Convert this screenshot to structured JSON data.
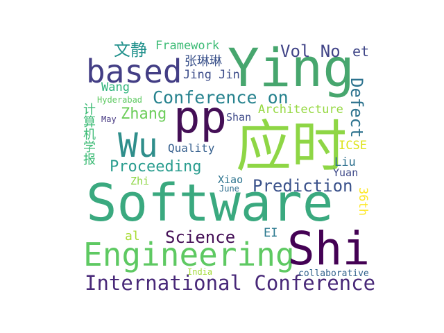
{
  "words": [
    {
      "key": "software",
      "text": "Software",
      "color": "#3aa97f"
    },
    {
      "key": "ying",
      "text": "Ying",
      "color": "#47a66e"
    },
    {
      "key": "based",
      "text": "based",
      "color": "#433e85"
    },
    {
      "key": "pp",
      "text": "pp",
      "color": "#440f56"
    },
    {
      "key": "wu",
      "text": "Wu",
      "color": "#2f8e8b"
    },
    {
      "key": "yingshi",
      "text": "应时",
      "color": "#8ed645"
    },
    {
      "key": "engineering",
      "text": "Engineering",
      "color": "#5ec962"
    },
    {
      "key": "shi",
      "text": "Shi",
      "color": "#440154"
    },
    {
      "key": "international_conference",
      "text": "International Conference",
      "color": "#482878"
    },
    {
      "key": "conference_on",
      "text": "Conference on",
      "color": "#26828e"
    },
    {
      "key": "prediction",
      "text": "Prediction",
      "color": "#3b528b"
    },
    {
      "key": "proceeding",
      "text": "Proceeding",
      "color": "#2a9d8f"
    },
    {
      "key": "science",
      "text": "Science",
      "color": "#440f56"
    },
    {
      "key": "vol_no",
      "text": "Vol No",
      "color": "#414487"
    },
    {
      "key": "et",
      "text": "et",
      "color": "#404788"
    },
    {
      "key": "zhang",
      "text": "Zhang",
      "color": "#6ccd5a"
    },
    {
      "key": "wenjing",
      "text": "文静",
      "color": "#21918c"
    },
    {
      "key": "framework",
      "text": "Framework",
      "color": "#3cbb75"
    },
    {
      "key": "zhanglinlin",
      "text": "张琳琳",
      "color": "#3b528b"
    },
    {
      "key": "jing_jin",
      "text": "Jing Jin",
      "color": "#3d4d8a"
    },
    {
      "key": "wang",
      "text": "Wang",
      "color": "#2fb47c"
    },
    {
      "key": "defect",
      "text": "Defect",
      "color": "#2c728e"
    },
    {
      "key": "architecture",
      "text": "Architecture",
      "color": "#95d840"
    },
    {
      "key": "shan",
      "text": "Shan",
      "color": "#3e4a89"
    },
    {
      "key": "hyderabad",
      "text": "Hyderabad",
      "color": "#5ec962"
    },
    {
      "key": "may",
      "text": "May",
      "color": "#453781"
    },
    {
      "key": "jisuanji",
      "text": "计算机学报",
      "color": "#3cbb75"
    },
    {
      "key": "quality",
      "text": "Quality",
      "color": "#355f8d"
    },
    {
      "key": "icse",
      "text": "ICSE",
      "color": "#dde318"
    },
    {
      "key": "liu",
      "text": "Liu",
      "color": "#2d708e"
    },
    {
      "key": "yuan",
      "text": "Yuan",
      "color": "#3e4989"
    },
    {
      "key": "zhi",
      "text": "Zhi",
      "color": "#8ed645"
    },
    {
      "key": "xiao",
      "text": "Xiao",
      "color": "#2c738e"
    },
    {
      "key": "june",
      "text": "June",
      "color": "#2e6e8e"
    },
    {
      "key": "36th",
      "text": "36th",
      "color": "#fde725"
    },
    {
      "key": "al",
      "text": "al",
      "color": "#a8db34"
    },
    {
      "key": "ei",
      "text": "EI",
      "color": "#2a788e"
    },
    {
      "key": "india",
      "text": "India",
      "color": "#a2da37"
    },
    {
      "key": "collaborative",
      "text": "collaborative",
      "color": "#33638d"
    }
  ]
}
